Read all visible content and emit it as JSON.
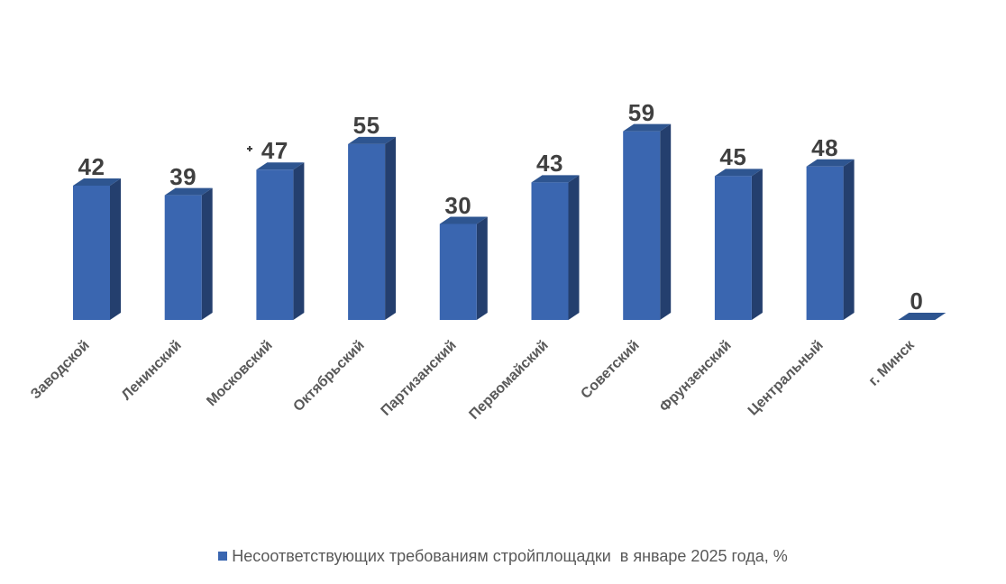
{
  "chart_data": {
    "type": "bar",
    "style": "3d-column",
    "title": "",
    "xlabel": "",
    "ylabel": "",
    "categories": [
      "Заводской",
      "Ленинский",
      "Московский",
      "Октябрьский",
      "Партизанский",
      "Первомайский",
      "Советский",
      "Фрунзенский",
      "Центральный",
      "г. Минск"
    ],
    "values": [
      42,
      39,
      47,
      55,
      30,
      43,
      59,
      45,
      48,
      0
    ],
    "series": [
      {
        "name": "Несоответствующих требованиям стройплощадки  в январе 2025 года, %",
        "values": [
          42,
          39,
          47,
          55,
          30,
          43,
          59,
          45,
          48,
          0
        ]
      }
    ],
    "ylim": [
      0,
      60
    ],
    "grid": false,
    "axes_visible": false,
    "data_labels": true,
    "legend_position": "bottom",
    "colors": {
      "bar_front": "#3A66B0",
      "bar_side": "#243F6E",
      "bar_top": "#2E5590",
      "value_label": "#404040",
      "category_label": "#595959",
      "legend_text": "#595959",
      "background": "#FFFFFF"
    }
  }
}
